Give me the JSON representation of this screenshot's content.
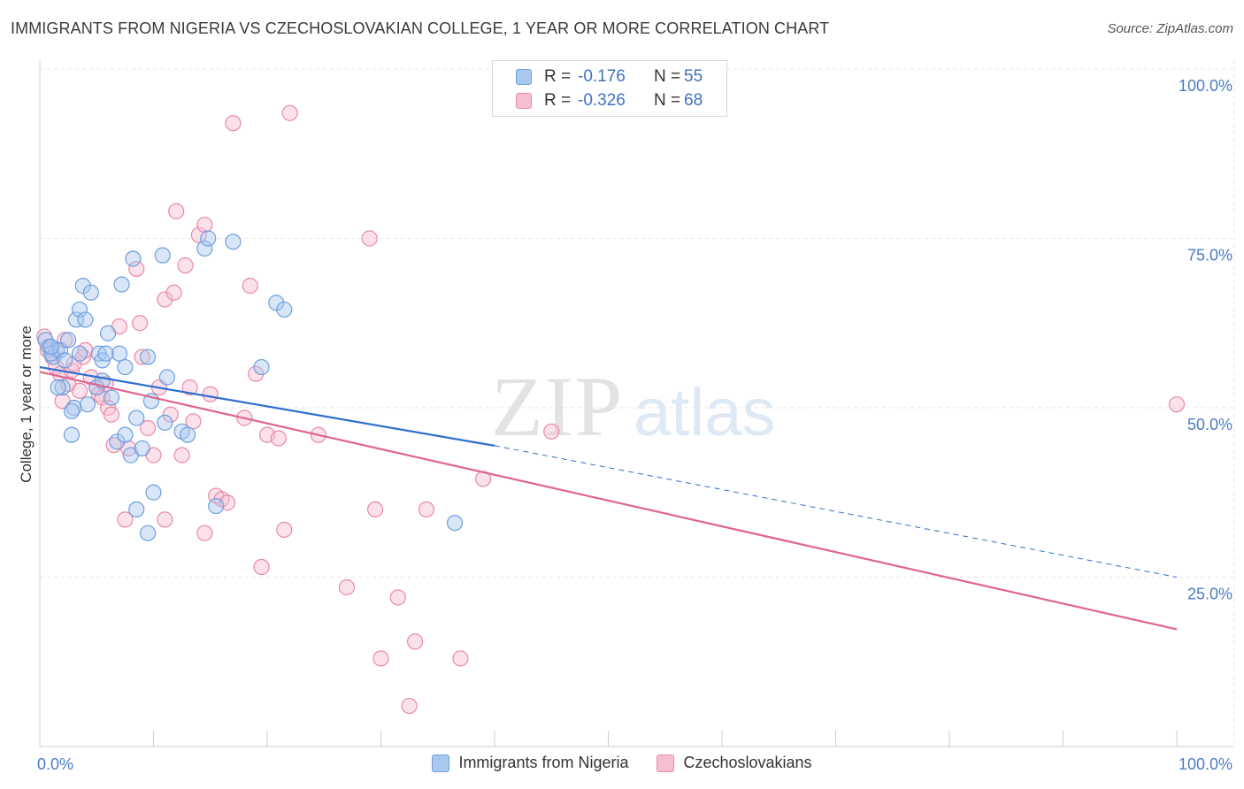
{
  "title": "IMMIGRANTS FROM NIGERIA VS CZECHOSLOVAKIAN COLLEGE, 1 YEAR OR MORE CORRELATION CHART",
  "source": "Source: ZipAtlas.com",
  "watermark": {
    "zip": "ZIP",
    "atlas": "atlas"
  },
  "legend": {
    "r_label": "R =",
    "n_label": "N =",
    "series": [
      {
        "r": "-0.176",
        "n": "55"
      },
      {
        "r": "-0.326",
        "n": "68"
      }
    ]
  },
  "colors": {
    "blue_fill": "#a9c8f0",
    "blue_stroke": "#6f9fdc",
    "blue_line": "#2e6fcf",
    "pink_fill": "#f6bfd1",
    "pink_stroke": "#e889a9",
    "pink_line": "#e0648f",
    "grid": "#e3e3e3",
    "tick_text": "#4a7cc4"
  },
  "chart_data": {
    "type": "scatter",
    "title": "IMMIGRANTS FROM NIGERIA VS CZECHOSLOVAKIAN COLLEGE, 1 YEAR OR MORE CORRELATION CHART",
    "xlabel": "",
    "ylabel": "College, 1 year or more",
    "xlim": [
      0,
      100
    ],
    "ylim": [
      0,
      100
    ],
    "x_tick_labels": [
      "0.0%",
      "100.0%"
    ],
    "y_ticks": [
      {
        "value": 25,
        "label": "25.0%"
      },
      {
        "value": 50,
        "label": "50.0%"
      },
      {
        "value": 75,
        "label": "75.0%"
      },
      {
        "value": 100,
        "label": "100.0%"
      }
    ],
    "grid": true,
    "series": [
      {
        "name": "Immigrants from Nigeria",
        "r": -0.176,
        "n": 55,
        "trend": {
          "x0": 0,
          "y0": 56,
          "x1": 40,
          "y1": 44.4,
          "dashed_to_x": 100,
          "dashed_to_y": 25
        },
        "points": [
          [
            0.5,
            60
          ],
          [
            0.8,
            59
          ],
          [
            1.2,
            57.5
          ],
          [
            1.5,
            58.5
          ],
          [
            1,
            58
          ],
          [
            1.8,
            58.5
          ],
          [
            2,
            53
          ],
          [
            2.2,
            57
          ],
          [
            1.6,
            53
          ],
          [
            2.5,
            60
          ],
          [
            2.8,
            46
          ],
          [
            3,
            50
          ],
          [
            3.2,
            63
          ],
          [
            3.5,
            64.5
          ],
          [
            2.8,
            49.5
          ],
          [
            3.8,
            68
          ],
          [
            4,
            63
          ],
          [
            4.5,
            67
          ],
          [
            4.2,
            50.5
          ],
          [
            5,
            53
          ],
          [
            5.2,
            58
          ],
          [
            5.5,
            54
          ],
          [
            5.5,
            57
          ],
          [
            6,
            61
          ],
          [
            6.3,
            51.5
          ],
          [
            6.8,
            45
          ],
          [
            7,
            58
          ],
          [
            7.2,
            68.2
          ],
          [
            7.5,
            56
          ],
          [
            8,
            43
          ],
          [
            8.2,
            72
          ],
          [
            8.5,
            48.5
          ],
          [
            9,
            44
          ],
          [
            9.5,
            57.5
          ],
          [
            9.8,
            51
          ],
          [
            10,
            37.5
          ],
          [
            7.5,
            46
          ],
          [
            10.8,
            72.5
          ],
          [
            11,
            47.8
          ],
          [
            11.2,
            54.5
          ],
          [
            12.5,
            46.5
          ],
          [
            13,
            46
          ],
          [
            14.5,
            73.5
          ],
          [
            14.8,
            75
          ],
          [
            15.5,
            35.5
          ],
          [
            8.5,
            35
          ],
          [
            9.5,
            31.5
          ],
          [
            17,
            74.5
          ],
          [
            19.5,
            56
          ],
          [
            20.8,
            65.5
          ],
          [
            21.5,
            64.5
          ],
          [
            36.5,
            33
          ],
          [
            5.8,
            58
          ],
          [
            3.5,
            58
          ],
          [
            1,
            59
          ]
        ]
      },
      {
        "name": "Czechoslovakians",
        "r": -0.326,
        "n": 68,
        "trend": {
          "x0": 0,
          "y0": 55.3,
          "x1": 100,
          "y1": 17.3
        },
        "points": [
          [
            0.4,
            60.5
          ],
          [
            0.7,
            58.5
          ],
          [
            1.1,
            57.5
          ],
          [
            1.4,
            56
          ],
          [
            1.8,
            55
          ],
          [
            2,
            51
          ],
          [
            2.2,
            60
          ],
          [
            2.5,
            53.5
          ],
          [
            2.8,
            55.5
          ],
          [
            3,
            56.5
          ],
          [
            3.5,
            52.5
          ],
          [
            3.8,
            57.5
          ],
          [
            4,
            58.5
          ],
          [
            4.5,
            54.5
          ],
          [
            5,
            53
          ],
          [
            5.2,
            52
          ],
          [
            5.5,
            51.5
          ],
          [
            5.8,
            53.5
          ],
          [
            6,
            50
          ],
          [
            6.3,
            49
          ],
          [
            6.5,
            44.5
          ],
          [
            7,
            62
          ],
          [
            7.5,
            33.5
          ],
          [
            7.8,
            44
          ],
          [
            8.5,
            70.5
          ],
          [
            8.8,
            62.5
          ],
          [
            9,
            57.5
          ],
          [
            9.5,
            47
          ],
          [
            10,
            43
          ],
          [
            10.5,
            53
          ],
          [
            11,
            33.5
          ],
          [
            11,
            66
          ],
          [
            11.5,
            49
          ],
          [
            11.8,
            67
          ],
          [
            12,
            79
          ],
          [
            12.5,
            43
          ],
          [
            12.8,
            71
          ],
          [
            13.2,
            53
          ],
          [
            13.5,
            48
          ],
          [
            14,
            75.5
          ],
          [
            14.5,
            77
          ],
          [
            15,
            52
          ],
          [
            15.5,
            37
          ],
          [
            16,
            36.5
          ],
          [
            16.5,
            36
          ],
          [
            17,
            92
          ],
          [
            18,
            48.5
          ],
          [
            18.5,
            68
          ],
          [
            19,
            55
          ],
          [
            19.5,
            26.5
          ],
          [
            20,
            46
          ],
          [
            21,
            45.5
          ],
          [
            21.5,
            32
          ],
          [
            22,
            93.5
          ],
          [
            24.5,
            46
          ],
          [
            27,
            23.5
          ],
          [
            29,
            75
          ],
          [
            29.5,
            35
          ],
          [
            30,
            13
          ],
          [
            31.5,
            22
          ],
          [
            32.5,
            6
          ],
          [
            33,
            15.5
          ],
          [
            34,
            35
          ],
          [
            37,
            13
          ],
          [
            39,
            39.5
          ],
          [
            45,
            46.5
          ],
          [
            100,
            50.5
          ],
          [
            14.5,
            31.5
          ]
        ]
      }
    ]
  }
}
